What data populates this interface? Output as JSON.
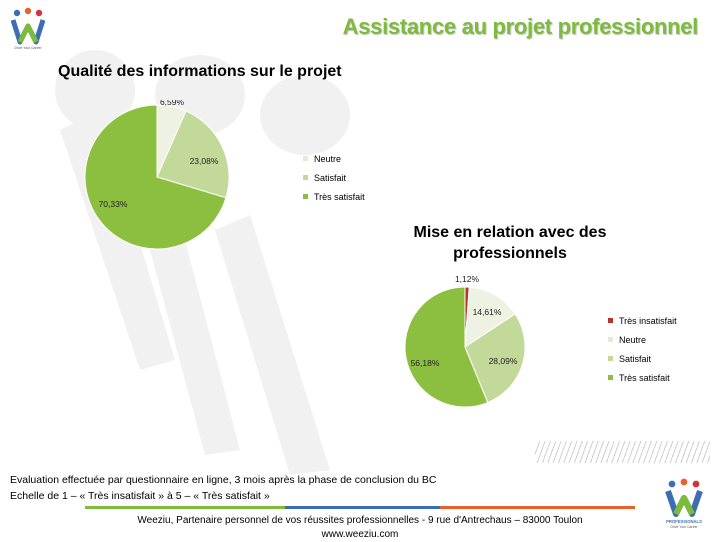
{
  "slide": {
    "title": "Assistance au projet professionnel",
    "brand": {
      "top_tagline": "Drive Your Career",
      "bottom_name": "PROFESSIONALS",
      "bottom_tagline": "Drive Your Career"
    },
    "footnote": [
      "Evaluation effectuée par questionnaire en ligne, 3 mois après la phase de conclusion du BC",
      "Echelle de 1 – « Très insatisfait » à 5 – « Très satisfait »"
    ],
    "footer": {
      "line1": "Weeziu, Partenaire personnel de vos réussites professionnelles - 9 rue d'Antrechaus – 83000 Toulon",
      "line2": "www.weeziu.com"
    },
    "colors": {
      "title_green": "#7dbb3a",
      "footer_green": "#7dbb3a",
      "footer_blue": "#3d6eb4",
      "footer_orange": "#e8602c"
    }
  },
  "chart_data": [
    {
      "type": "pie",
      "title": "Qualité des informations sur le projet",
      "legend_position": "right",
      "series": [
        {
          "name": "Neutre",
          "value": 6.59,
          "label": "6,59%",
          "color": "#eef2e3"
        },
        {
          "name": "Satisfait",
          "value": 23.08,
          "label": "23,08%",
          "color": "#c3d99a"
        },
        {
          "name": "Très satisfait",
          "value": 70.33,
          "label": "70,33%",
          "color": "#8cbf3f"
        }
      ]
    },
    {
      "type": "pie",
      "title": "Mise en relation avec des professionnels",
      "legend_position": "right",
      "series": [
        {
          "name": "Très insatisfait",
          "value": 1.12,
          "label": "1,12%",
          "color": "#b8322c"
        },
        {
          "name": "Neutre",
          "value": 14.61,
          "label": "14,61%",
          "color": "#eef2e3"
        },
        {
          "name": "Satisfait",
          "value": 28.09,
          "label": "28,09%",
          "color": "#c3d99a"
        },
        {
          "name": "Très satisfait",
          "value": 56.18,
          "label": "56,18%",
          "color": "#8cbf3f"
        }
      ]
    }
  ]
}
